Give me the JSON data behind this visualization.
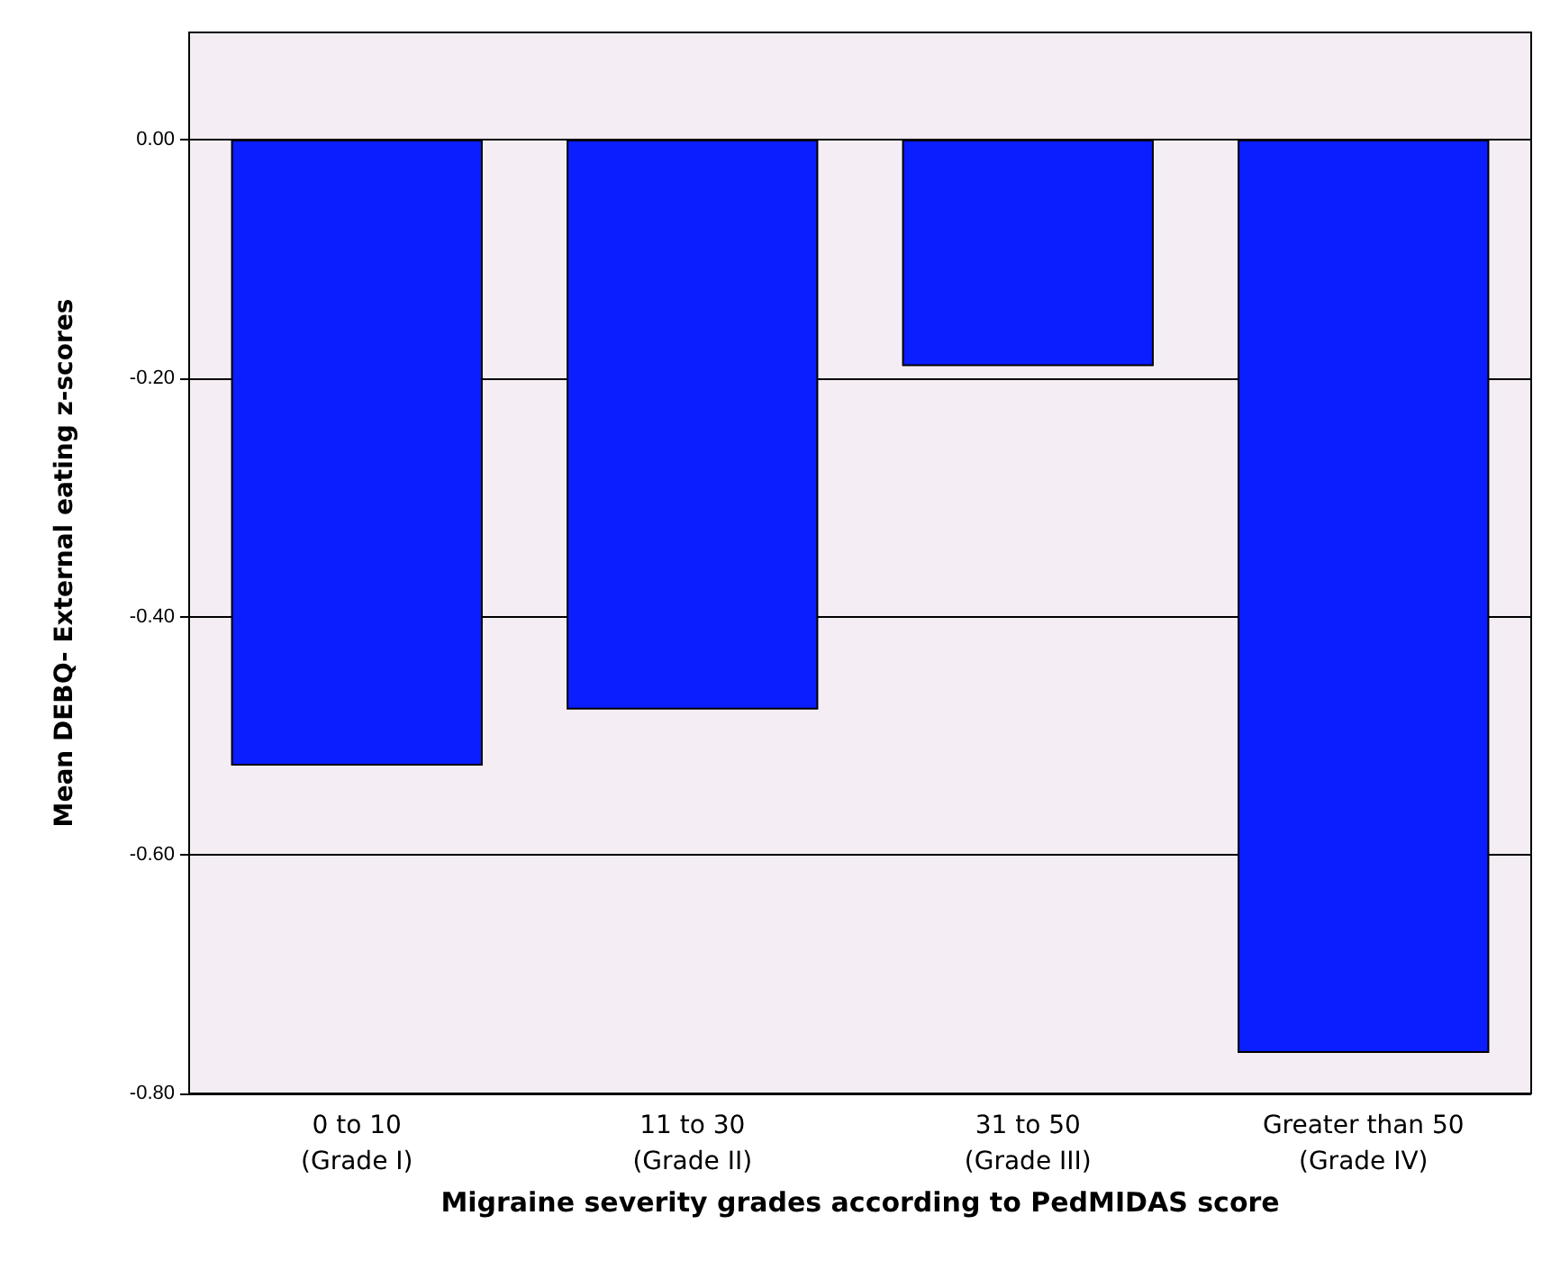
{
  "chart_data": {
    "type": "bar",
    "xlabel": "Migraine severity grades according to PedMIDAS score",
    "ylabel": "Mean DEBQ- External eating z-scores",
    "categories": [
      "0 to 10\n(Grade I)",
      "11 to 30\n(Grade II)",
      "31 to 50\n(Grade III)",
      "Greater than 50\n(Grade IV)"
    ],
    "values": [
      -0.525,
      -0.478,
      -0.19,
      -0.766
    ],
    "color": "#0a1eff",
    "ylim": [
      -0.8,
      0.09
    ],
    "yticks": [
      {
        "value": 0,
        "label": "0.00"
      },
      {
        "value": -0.2,
        "label": "-0.20"
      },
      {
        "value": -0.4,
        "label": "-0.40"
      },
      {
        "value": -0.6,
        "label": "-0.60"
      },
      {
        "value": -0.8,
        "label": "-0.80"
      }
    ],
    "grid": "y"
  }
}
